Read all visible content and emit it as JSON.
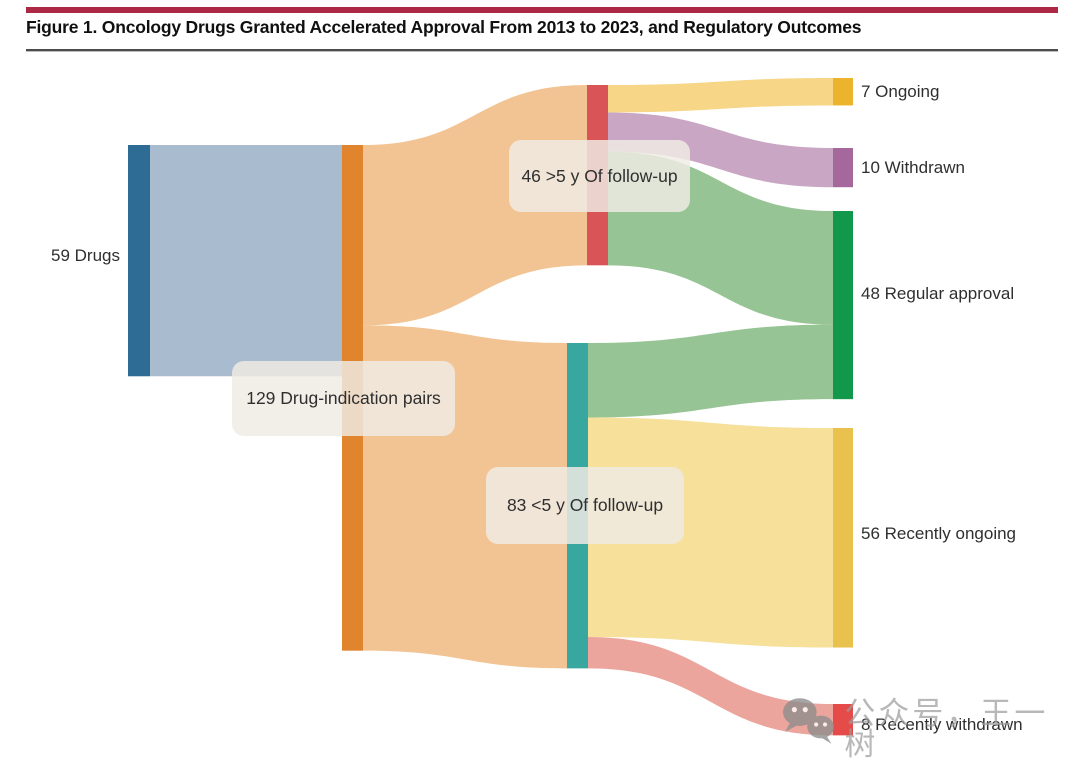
{
  "header": {
    "title": "Figure 1. Oncology Drugs Granted Accelerated Approval From 2013 to 2023, and Regulatory Outcomes",
    "accent_bar_color": "#ad2845",
    "rule_color": "#4c4c4c"
  },
  "chart_data": {
    "type": "sankey",
    "title": "Oncology Drugs Granted Accelerated Approval From 2013 to 2023, and Regulatory Outcomes",
    "legend_position": "none",
    "grid": false,
    "nodes": [
      {
        "id": "drugs",
        "label": "59 Drugs",
        "value": 59,
        "color": "#2e6c96"
      },
      {
        "id": "pairs",
        "label": "129 Drug-indication pairs",
        "value": 129,
        "color": "#e0842e"
      },
      {
        "id": "gt5",
        "label": "46 >5 y Of follow-up",
        "value": 46,
        "color": "#d95457"
      },
      {
        "id": "lt5",
        "label": "83 <5 y Of follow-up",
        "value": 83,
        "color": "#37a7a0"
      },
      {
        "id": "ongoing",
        "label": "7 Ongoing",
        "value": 7,
        "color": "#ecb32d"
      },
      {
        "id": "withdrawn",
        "label": "10 Withdrawn",
        "value": 10,
        "color": "#a4689c"
      },
      {
        "id": "regular",
        "label": "48 Regular approval",
        "value": 48,
        "color": "#12984a"
      },
      {
        "id": "recent_ongoing",
        "label": "56 Recently ongoing",
        "value": 56,
        "color": "#e9c14d"
      },
      {
        "id": "recent_withdrawn",
        "label": "8 Recently withdrawn",
        "value": 8,
        "color": "#e54b48"
      }
    ],
    "links": [
      {
        "source": "drugs",
        "target": "pairs",
        "value": 59,
        "color": "#a9bccf"
      },
      {
        "source": "pairs",
        "target": "gt5",
        "value": 46,
        "color": "#f2c493"
      },
      {
        "source": "pairs",
        "target": "lt5",
        "value": 83,
        "color": "#f2c493"
      },
      {
        "source": "gt5",
        "target": "ongoing",
        "value": 7,
        "color": "#f8d688"
      },
      {
        "source": "gt5",
        "target": "withdrawn",
        "value": 10,
        "color": "#c9a6c4"
      },
      {
        "source": "gt5",
        "target": "regular",
        "value": 29,
        "color": "#97c494"
      },
      {
        "source": "lt5",
        "target": "regular",
        "value": 19,
        "color": "#97c494"
      },
      {
        "source": "lt5",
        "target": "recent_ongoing",
        "value": 56,
        "color": "#f7e09a"
      },
      {
        "source": "lt5",
        "target": "recent_withdrawn",
        "value": 8,
        "color": "#eca59d"
      }
    ]
  },
  "watermark": {
    "text": "公众号，王一树",
    "icon": "wechat-icon",
    "color": "#9d9d9d"
  }
}
